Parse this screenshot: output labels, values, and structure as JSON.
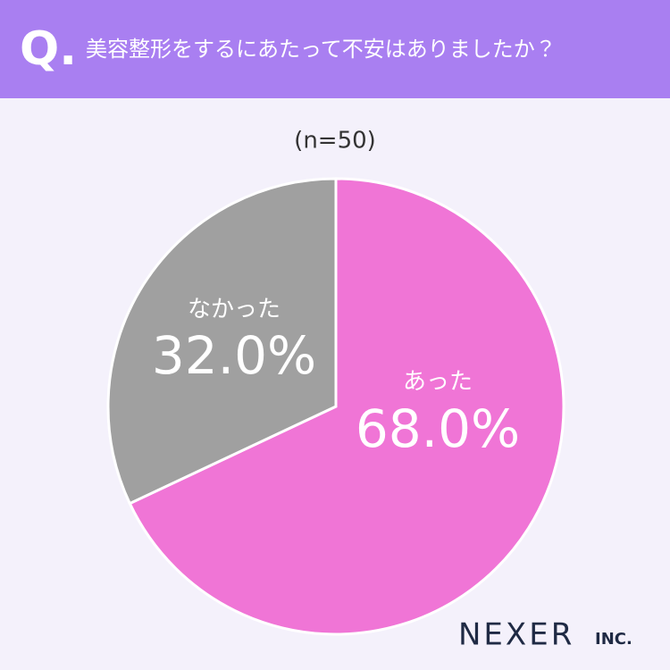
{
  "header": {
    "marker": "Q.",
    "title": "美容整形をするにあたって不安はありましたか？"
  },
  "chart_data": {
    "type": "pie",
    "subtitle": "(n=50)",
    "categories": [
      "あった",
      "なかった"
    ],
    "values": [
      68.0,
      32.0
    ],
    "value_labels": [
      "68.0%",
      "32.0%"
    ],
    "colors": [
      "#f075d6",
      "#a0a0a0"
    ]
  },
  "footer": {
    "brand": "NEXER",
    "suffix": "INC."
  }
}
